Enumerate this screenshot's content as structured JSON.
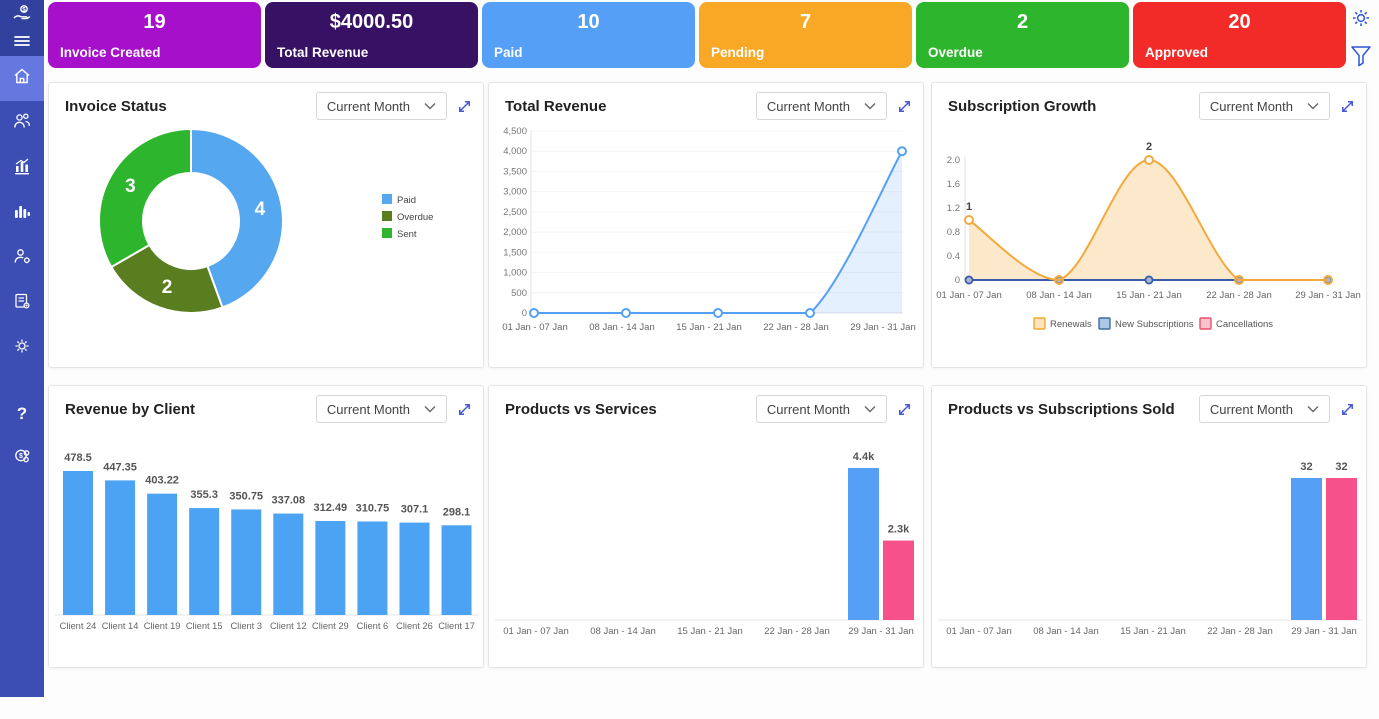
{
  "sidebar": {
    "icons": [
      "finance-logo",
      "menu",
      "home",
      "clients",
      "reports",
      "analytics",
      "user-settings",
      "invoices",
      "settings",
      "help",
      "billing"
    ],
    "active_item": "home"
  },
  "header": {
    "settings_icon": "gear-icon",
    "filter_icon": "filter-icon",
    "icon_color": "#2f55d8"
  },
  "kpis": [
    {
      "value": "19",
      "label": "Invoice Created",
      "color": "#a610cb"
    },
    {
      "value": "$4000.50",
      "label": "Total Revenue",
      "color": "#371164"
    },
    {
      "value": "10",
      "label": "Paid",
      "color": "#55a0f6"
    },
    {
      "value": "7",
      "label": "Pending",
      "color": "#f9a825"
    },
    {
      "value": "2",
      "label": "Overdue",
      "color": "#2db52d"
    },
    {
      "value": "20",
      "label": "Approved",
      "color": "#f22b29"
    }
  ],
  "panels": [
    {
      "title": "Invoice Status",
      "filter": "Current Month"
    },
    {
      "title": "Total Revenue",
      "filter": "Current Month"
    },
    {
      "title": "Subscription Growth",
      "filter": "Current Month"
    },
    {
      "title": "Revenue by Client",
      "filter": "Current Month"
    },
    {
      "title": "Products vs Services",
      "filter": "Current Month"
    },
    {
      "title": "Products vs Subscriptions Sold",
      "filter": "Current Month"
    }
  ],
  "chart_data": [
    {
      "type": "pie",
      "title": "Invoice Status",
      "donut": true,
      "legend_position": "right",
      "slices": [
        {
          "label": "Paid",
          "value": 4,
          "color": "#55a7f0"
        },
        {
          "label": "Overdue",
          "value": 2,
          "color": "#5a7d1f"
        },
        {
          "label": "Sent",
          "value": 3,
          "color": "#2eb52e"
        }
      ],
      "slice_labels": [
        "4",
        "2",
        "3"
      ]
    },
    {
      "type": "area",
      "title": "Total Revenue",
      "x": [
        "01 Jan - 07 Jan",
        "08 Jan - 14 Jan",
        "15 Jan - 21 Jan",
        "22 Jan - 28 Jan",
        "29 Jan - 31 Jan"
      ],
      "values": [
        0,
        0,
        0,
        0,
        4000
      ],
      "ylim": [
        0,
        4500
      ],
      "yticks": [
        "0",
        "500",
        "1,000",
        "1,500",
        "2,000",
        "2,500",
        "3,000",
        "3,500",
        "4,000",
        "4,500"
      ],
      "line_color": "#55a0f6",
      "fill_color": "rgba(85,160,246,0.16)",
      "grid": true
    },
    {
      "type": "line",
      "title": "Subscription Growth",
      "x": [
        "01 Jan - 07 Jan",
        "08 Jan - 14 Jan",
        "15 Jan - 21 Jan",
        "22 Jan - 28 Jan",
        "29 Jan - 31 Jan"
      ],
      "ylim": [
        0,
        2
      ],
      "yticks": [
        "0",
        "0.4",
        "0.8",
        "1.2",
        "1.6",
        "2.0"
      ],
      "legend_position": "bottom",
      "series": [
        {
          "name": "Renewals",
          "values": [
            1,
            0,
            2,
            0,
            0
          ],
          "color": "#f4a93c",
          "fill": "rgba(249,212,151,0.5)",
          "point_labels": [
            "1",
            "",
            "2",
            "",
            ""
          ]
        },
        {
          "name": "New Subscriptions",
          "values": [
            0,
            0,
            0,
            0,
            0
          ],
          "color": "#3a5ba9",
          "marker_fill": "#a9b6cf"
        },
        {
          "name": "Cancellations",
          "values": [
            0,
            0,
            0,
            0,
            0
          ],
          "color": "#e8506e"
        }
      ],
      "legend": [
        {
          "label": "Renewals",
          "fill": "#fbe3bd",
          "stroke": "#f0a833"
        },
        {
          "label": "New Subscriptions",
          "fill": "#abc8e8",
          "stroke": "#3c6e9f"
        },
        {
          "label": "Cancellations",
          "fill": "#f6c3cd",
          "stroke": "#e8506e"
        }
      ]
    },
    {
      "type": "bar",
      "title": "Revenue by Client",
      "categories": [
        "Client 24",
        "Client 14",
        "Client 19",
        "Client 15",
        "Client 3",
        "Client 12",
        "Client 29",
        "Client 6",
        "Client 26",
        "Client 17"
      ],
      "values": [
        478.5,
        447.35,
        403.22,
        355.3,
        350.75,
        337.08,
        312.49,
        310.75,
        307.1,
        298.1
      ],
      "value_labels": [
        "478.5",
        "447.35",
        "403.22",
        "355.3",
        "350.75",
        "337.08",
        "312.49",
        "310.75",
        "307.1",
        "298.1"
      ],
      "bar_color": "#4da3f3"
    },
    {
      "type": "bar",
      "title": "Products vs Services",
      "categories": [
        "01 Jan - 07 Jan",
        "08 Jan - 14 Jan",
        "15 Jan - 21 Jan",
        "22 Jan - 28 Jan",
        "29 Jan - 31 Jan"
      ],
      "series": [
        {
          "color": "#55a0f6",
          "values": [
            null,
            null,
            null,
            null,
            4400
          ],
          "value_labels": [
            "",
            "",
            "",
            "",
            "4.4k"
          ]
        },
        {
          "color": "#f6518b",
          "values": [
            null,
            null,
            null,
            null,
            2300
          ],
          "value_labels": [
            "",
            "",
            "",
            "",
            "2.3k"
          ]
        }
      ]
    },
    {
      "type": "bar",
      "title": "Products vs Subscriptions Sold",
      "categories": [
        "01 Jan - 07 Jan",
        "08 Jan - 14 Jan",
        "15 Jan - 21 Jan",
        "22 Jan - 28 Jan",
        "29 Jan - 31 Jan"
      ],
      "series": [
        {
          "color": "#55a0f6",
          "values": [
            null,
            null,
            null,
            null,
            32
          ],
          "value_labels": [
            "",
            "",
            "",
            "",
            "32"
          ]
        },
        {
          "color": "#f6518b",
          "values": [
            null,
            null,
            null,
            null,
            32
          ],
          "value_labels": [
            "",
            "",
            "",
            "",
            "32"
          ]
        }
      ]
    }
  ]
}
